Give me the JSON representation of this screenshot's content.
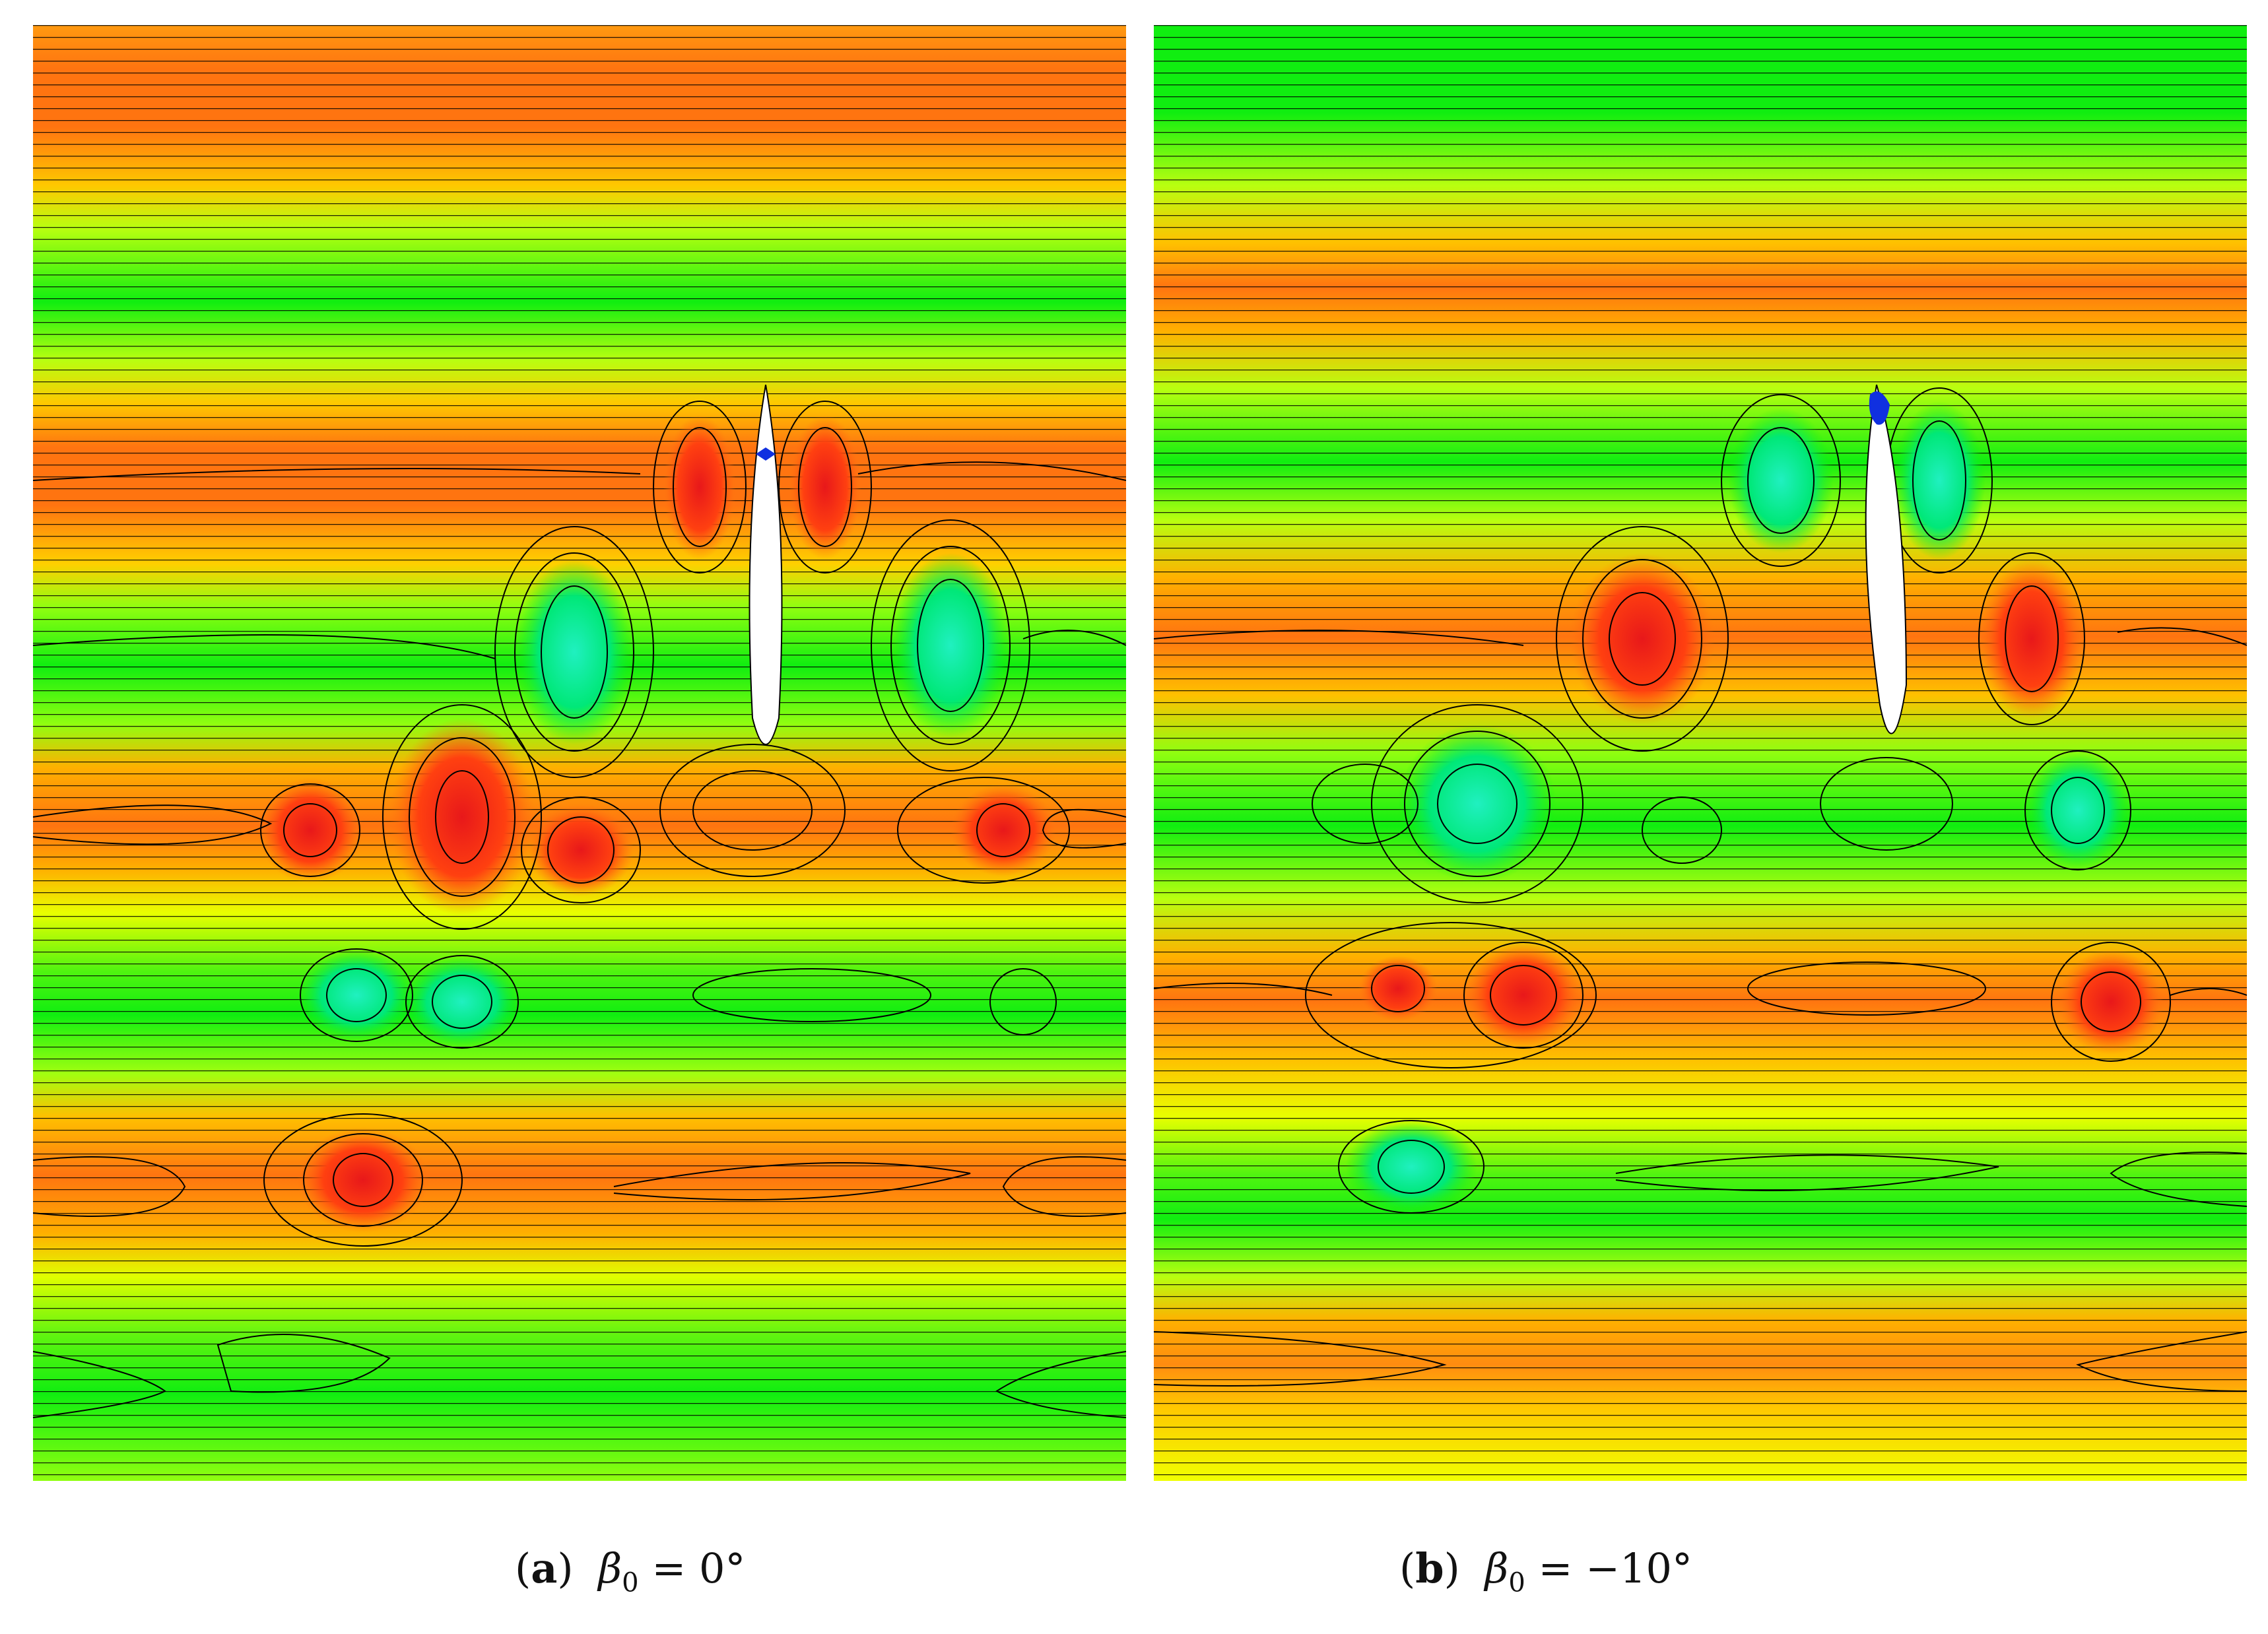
{
  "panels": [
    {
      "id": "a",
      "caption_label": "a",
      "caption_formula": "β₀ = 0°",
      "caption_symbol": "β",
      "caption_sub": "0",
      "caption_value": " = 0°"
    },
    {
      "id": "b",
      "caption_label": "b",
      "caption_formula": "β₀ = −10°",
      "caption_symbol": "β",
      "caption_sub": "0",
      "caption_value": " = −10°"
    }
  ],
  "colors": {
    "deep_red": "#e8181a",
    "red_orange": "#ff5a10",
    "orange": "#ff8c10",
    "amber": "#ffb000",
    "yellow": "#ffff00",
    "yellow_green": "#b8ff10",
    "green": "#00ee10",
    "teal_green": "#00e890",
    "cyan": "#20f0c0",
    "blue": "#1030e0",
    "contour_line": "#000000"
  }
}
